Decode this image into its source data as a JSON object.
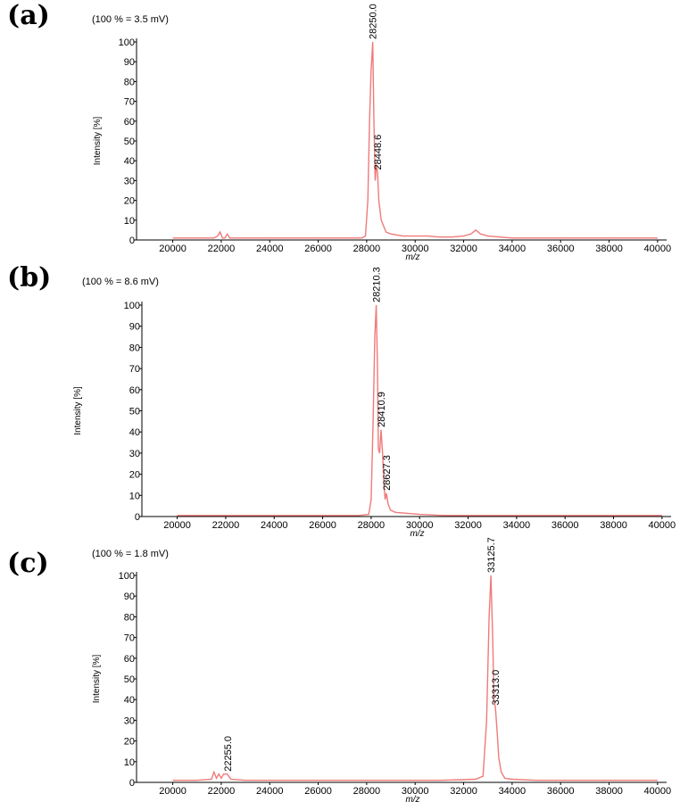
{
  "colors": {
    "trace": "#f07a7a",
    "axis": "#000000"
  },
  "chart_data": [
    {
      "type": "line",
      "panel_label": "(a)",
      "scale_note": "(100 % = 3.5 mV)",
      "xlabel": "m/z",
      "ylabel": "Intensity [%]",
      "xlim": [
        19500,
        40300
      ],
      "ylim": [
        0,
        100
      ],
      "x_ticks": [
        20000,
        22000,
        24000,
        26000,
        28000,
        30000,
        32000,
        34000,
        36000,
        38000,
        40000
      ],
      "y_ticks": [
        0,
        10,
        20,
        30,
        40,
        50,
        60,
        70,
        80,
        90,
        100
      ],
      "peak_labels": [
        {
          "x": 28250.0,
          "y": 100,
          "text": "28250.0"
        },
        {
          "x": 28448.6,
          "y": 34,
          "text": "28448.6"
        }
      ],
      "series": [
        {
          "x": [
            20000,
            21000,
            21700,
            21850,
            21950,
            22050,
            22150,
            22250,
            22350,
            23000,
            25000,
            27000,
            27800,
            27950,
            28050,
            28120,
            28180,
            28250,
            28300,
            28350,
            28400,
            28448,
            28500,
            28600,
            28800,
            29000,
            29500,
            30000,
            30500,
            31000,
            31500,
            32000,
            32300,
            32500,
            32700,
            33000,
            33500,
            34000,
            36000,
            38000,
            40000
          ],
          "y": [
            1,
            1,
            1,
            2,
            4,
            1,
            1,
            3,
            1,
            1,
            1,
            1,
            1,
            2,
            20,
            60,
            85,
            100,
            60,
            30,
            38,
            34,
            20,
            10,
            4,
            3,
            2,
            2,
            2,
            1.5,
            1.5,
            2,
            3,
            5,
            3,
            2,
            1.5,
            1,
            1,
            1,
            1
          ]
        }
      ]
    },
    {
      "type": "line",
      "panel_label": "(b)",
      "scale_note": "(100 % = 8.6 mV)",
      "xlabel": "m/z",
      "ylabel": "Intensity [%]",
      "xlim": [
        19500,
        40300
      ],
      "ylim": [
        0,
        100
      ],
      "x_ticks": [
        20000,
        22000,
        24000,
        26000,
        28000,
        30000,
        32000,
        34000,
        36000,
        38000,
        40000
      ],
      "y_ticks": [
        0,
        10,
        20,
        30,
        40,
        50,
        60,
        70,
        80,
        90,
        100
      ],
      "peak_labels": [
        {
          "x": 28210.3,
          "y": 100,
          "text": "28210.3"
        },
        {
          "x": 28410.9,
          "y": 41,
          "text": "28410.9"
        },
        {
          "x": 28627.3,
          "y": 11,
          "text": "28627.3"
        }
      ],
      "series": [
        {
          "x": [
            20000,
            22000,
            24000,
            26000,
            27500,
            27900,
            28000,
            28080,
            28150,
            28210,
            28260,
            28300,
            28350,
            28410,
            28470,
            28530,
            28580,
            28627,
            28700,
            28800,
            29000,
            29500,
            30000,
            31000,
            32000,
            34000,
            36000,
            38000,
            40000
          ],
          "y": [
            0.5,
            0.5,
            0.5,
            0.5,
            0.5,
            1,
            8,
            45,
            85,
            100,
            70,
            32,
            30,
            41,
            30,
            15,
            8,
            11,
            6,
            3,
            2,
            1.5,
            1,
            0.5,
            0.5,
            0.5,
            0.5,
            0.5,
            0.5
          ]
        }
      ]
    },
    {
      "type": "line",
      "panel_label": "(c)",
      "scale_note": "(100 % = 1.8 mV)",
      "xlabel": "m/z",
      "ylabel": "Intensity [%]",
      "xlim": [
        19500,
        40300
      ],
      "ylim": [
        0,
        100
      ],
      "x_ticks": [
        20000,
        22000,
        24000,
        26000,
        28000,
        30000,
        32000,
        34000,
        36000,
        38000,
        40000
      ],
      "y_ticks": [
        0,
        10,
        20,
        30,
        40,
        50,
        60,
        70,
        80,
        90,
        100
      ],
      "peak_labels": [
        {
          "x": 22255.0,
          "y": 4,
          "text": "22255.0"
        },
        {
          "x": 33125.7,
          "y": 100,
          "text": "33125.7"
        },
        {
          "x": 33313.0,
          "y": 36,
          "text": "33313.0"
        }
      ],
      "series": [
        {
          "x": [
            20000,
            21000,
            21600,
            21700,
            21800,
            21900,
            22000,
            22100,
            22255,
            22400,
            23000,
            25000,
            27000,
            29000,
            31000,
            32500,
            32800,
            32950,
            33050,
            33125,
            33200,
            33250,
            33313,
            33380,
            33450,
            33550,
            33700,
            34000,
            35000,
            37000,
            40000
          ],
          "y": [
            1,
            1,
            1.5,
            5,
            2,
            4,
            2,
            4,
            4,
            1.5,
            1,
            1,
            1,
            1,
            1,
            1.5,
            3,
            30,
            80,
            100,
            70,
            40,
            36,
            25,
            12,
            5,
            2,
            1.5,
            1,
            1,
            1
          ]
        }
      ]
    }
  ]
}
